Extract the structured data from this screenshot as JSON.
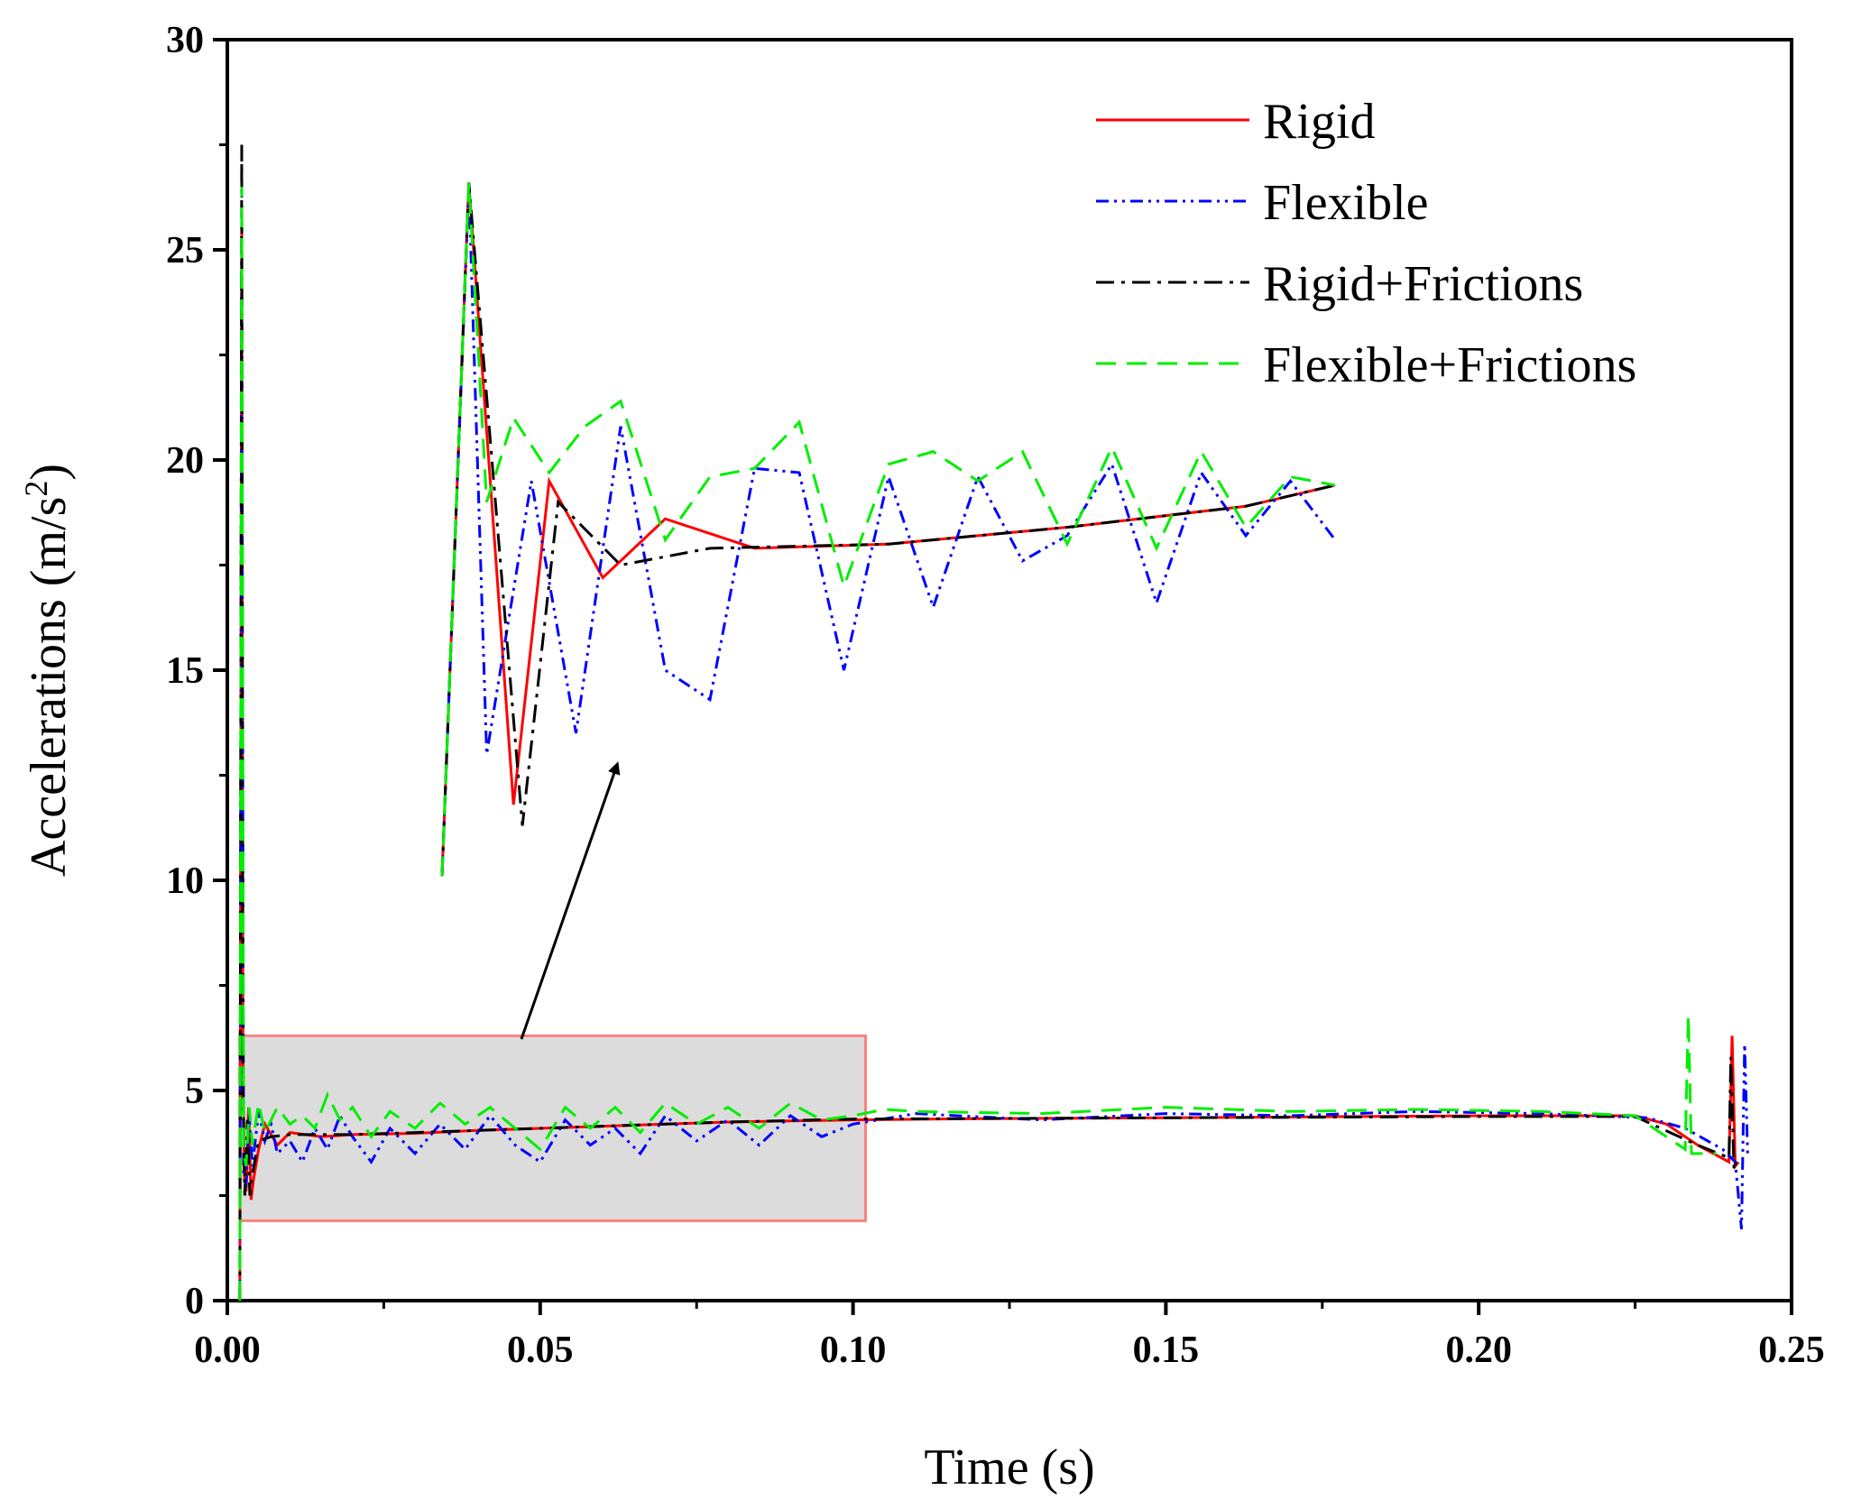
{
  "chart_data": {
    "type": "line",
    "xlabel": "Time (s)",
    "ylabel": "Accelerations (m/s",
    "ylabel_sup": "2",
    "ylabel_tail": ")",
    "xlim": [
      0,
      0.25
    ],
    "ylim": [
      0,
      30
    ],
    "xticks": [
      0.0,
      0.05,
      0.1,
      0.15,
      0.2,
      0.25
    ],
    "xtick_labels": [
      "0.00",
      "0.05",
      "0.10",
      "0.15",
      "0.20",
      "0.25"
    ],
    "yticks": [
      0,
      5,
      10,
      15,
      20,
      25,
      30
    ],
    "ytick_labels": [
      "0",
      "5",
      "10",
      "15",
      "20",
      "25",
      "30"
    ],
    "grid": false,
    "legend_position": "top-right",
    "series": [
      {
        "name": "Rigid",
        "color": "#ff0000",
        "style": "solid",
        "x": [
          0.002,
          0.0023,
          0.0025,
          0.0027,
          0.003,
          0.0034,
          0.0038,
          0.0042,
          0.005,
          0.006,
          0.008,
          0.01,
          0.015,
          0.02,
          0.03,
          0.04,
          0.05,
          0.06,
          0.08,
          0.1,
          0.12,
          0.15,
          0.18,
          0.2,
          0.225,
          0.23,
          0.235,
          0.24,
          0.2405,
          0.241,
          0.2415
        ],
        "y": [
          0.0,
          25.5,
          6.0,
          3.0,
          2.6,
          4.6,
          2.4,
          2.9,
          3.6,
          4.2,
          3.7,
          4.0,
          3.9,
          3.95,
          3.98,
          4.05,
          4.1,
          4.15,
          4.25,
          4.3,
          4.33,
          4.35,
          4.38,
          4.4,
          4.4,
          4.2,
          3.7,
          3.3,
          6.3,
          3.2,
          3.3
        ]
      },
      {
        "name": "Flexible",
        "color": "#0000ff",
        "style": "dash-dot-dot",
        "x": [
          0.002,
          0.0023,
          0.0026,
          0.003,
          0.0035,
          0.004,
          0.005,
          0.006,
          0.007,
          0.008,
          0.01,
          0.012,
          0.014,
          0.016,
          0.018,
          0.02,
          0.023,
          0.026,
          0.03,
          0.034,
          0.038,
          0.042,
          0.046,
          0.05,
          0.054,
          0.058,
          0.062,
          0.066,
          0.07,
          0.075,
          0.08,
          0.085,
          0.09,
          0.095,
          0.1,
          0.11,
          0.13,
          0.15,
          0.17,
          0.19,
          0.21,
          0.227,
          0.233,
          0.239,
          0.241,
          0.242,
          0.2425,
          0.243
        ],
        "y": [
          0.0,
          25.0,
          3.0,
          2.7,
          4.4,
          3.2,
          4.5,
          3.8,
          4.2,
          3.5,
          3.8,
          3.3,
          4.1,
          3.6,
          4.4,
          3.9,
          3.3,
          4.1,
          3.5,
          4.2,
          3.6,
          4.4,
          3.7,
          3.3,
          4.3,
          3.7,
          4.1,
          3.5,
          4.4,
          3.8,
          4.3,
          3.7,
          4.4,
          3.9,
          4.2,
          4.45,
          4.3,
          4.45,
          4.4,
          4.5,
          4.45,
          4.35,
          4.1,
          3.6,
          3.3,
          1.7,
          6.1,
          3.4
        ]
      },
      {
        "name": "Rigid+Frictions",
        "color": "#000000",
        "style": "dash-dot",
        "x": [
          0.002,
          0.0023,
          0.0025,
          0.0028,
          0.0032,
          0.0036,
          0.004,
          0.005,
          0.007,
          0.01,
          0.02,
          0.04,
          0.06,
          0.08,
          0.1,
          0.15,
          0.2,
          0.225,
          0.235,
          0.24,
          0.2403,
          0.2408,
          0.2412
        ],
        "y": [
          0.0,
          27.5,
          5.0,
          2.5,
          4.3,
          2.5,
          3.0,
          3.8,
          3.9,
          3.95,
          3.95,
          4.05,
          4.15,
          4.25,
          4.32,
          4.35,
          4.38,
          4.38,
          3.7,
          3.4,
          5.8,
          3.1,
          3.3
        ]
      },
      {
        "name": "Flexible+Frictions",
        "color": "#00ee00",
        "style": "dashed",
        "x": [
          0.002,
          0.0023,
          0.0026,
          0.003,
          0.0035,
          0.004,
          0.005,
          0.006,
          0.008,
          0.01,
          0.012,
          0.014,
          0.016,
          0.018,
          0.02,
          0.023,
          0.026,
          0.03,
          0.034,
          0.038,
          0.042,
          0.046,
          0.05,
          0.054,
          0.058,
          0.062,
          0.066,
          0.07,
          0.075,
          0.08,
          0.085,
          0.09,
          0.095,
          0.1,
          0.105,
          0.11,
          0.13,
          0.15,
          0.17,
          0.19,
          0.21,
          0.225,
          0.233,
          0.2335,
          0.234,
          0.238
        ],
        "y": [
          0.0,
          26.5,
          3.5,
          3.2,
          4.6,
          3.7,
          4.7,
          4.0,
          4.6,
          4.2,
          4.4,
          4.1,
          4.9,
          4.3,
          4.6,
          3.9,
          4.5,
          4.1,
          4.7,
          4.2,
          4.6,
          4.1,
          3.6,
          4.6,
          4.1,
          4.6,
          4.0,
          4.7,
          4.2,
          4.6,
          4.1,
          4.7,
          4.3,
          4.4,
          4.55,
          4.5,
          4.45,
          4.6,
          4.5,
          4.55,
          4.5,
          4.4,
          3.6,
          6.8,
          3.5,
          3.5
        ]
      }
    ],
    "inset": {
      "description": "Zoomed view of highlighted region 0.002-0.102 s",
      "source_xlim": [
        0.002,
        0.102
      ],
      "source_ylim": [
        1.9,
        6.3
      ],
      "series": [
        {
          "name": "Rigid",
          "x": [
            0.0,
            0.003,
            0.008,
            0.012,
            0.018,
            0.025,
            0.035,
            0.05,
            0.07,
            0.09,
            0.1
          ],
          "y": [
            10.1,
            26.6,
            11.8,
            19.5,
            17.2,
            18.6,
            17.9,
            18.0,
            18.4,
            18.9,
            19.4
          ]
        },
        {
          "name": "Flexible",
          "x": [
            0.0,
            0.003,
            0.005,
            0.01,
            0.015,
            0.02,
            0.025,
            0.03,
            0.035,
            0.04,
            0.045,
            0.05,
            0.055,
            0.06,
            0.065,
            0.07,
            0.075,
            0.08,
            0.085,
            0.09,
            0.095,
            0.1
          ],
          "y": [
            10.1,
            26.5,
            13.0,
            19.5,
            13.5,
            20.8,
            15.0,
            14.3,
            19.8,
            19.7,
            15.0,
            19.6,
            16.5,
            19.6,
            17.6,
            18.2,
            19.9,
            16.6,
            19.7,
            18.2,
            19.5,
            18.1
          ]
        },
        {
          "name": "Rigid+Frictions",
          "x": [
            0.0,
            0.003,
            0.009,
            0.013,
            0.02,
            0.03,
            0.05,
            0.07,
            0.09,
            0.1
          ],
          "y": [
            10.1,
            26.6,
            11.3,
            19.0,
            17.5,
            17.9,
            18.0,
            18.4,
            18.9,
            19.4
          ]
        },
        {
          "name": "Flexible+Frictions",
          "x": [
            0.0,
            0.003,
            0.005,
            0.008,
            0.012,
            0.016,
            0.02,
            0.025,
            0.03,
            0.035,
            0.04,
            0.045,
            0.05,
            0.055,
            0.06,
            0.065,
            0.07,
            0.075,
            0.08,
            0.085,
            0.09,
            0.095,
            0.1
          ],
          "y": [
            10.1,
            26.6,
            19.0,
            21.0,
            19.7,
            20.8,
            21.4,
            18.1,
            19.6,
            19.8,
            20.9,
            17.0,
            19.9,
            20.2,
            19.5,
            20.2,
            18.0,
            20.3,
            17.9,
            20.2,
            18.4,
            19.6,
            19.4
          ]
        }
      ]
    }
  }
}
